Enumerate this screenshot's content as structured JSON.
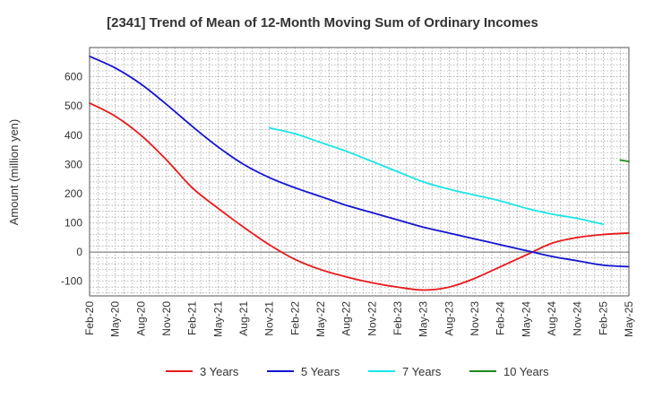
{
  "chart_data": {
    "type": "line",
    "title": "[2341]  Trend of Mean of 12-Month Moving Sum of Ordinary Incomes",
    "xlabel": "",
    "ylabel": "Amount (million yen)",
    "ylim": [
      -150,
      700
    ],
    "yticks": [
      -100,
      0,
      100,
      200,
      300,
      400,
      500,
      600
    ],
    "xlim": [
      0,
      63
    ],
    "xtick_positions": [
      0,
      3,
      6,
      9,
      12,
      15,
      18,
      21,
      24,
      27,
      30,
      33,
      36,
      39,
      42,
      45,
      48,
      51,
      54,
      57,
      60,
      63
    ],
    "categories": [
      "Feb-20",
      "May-20",
      "Aug-20",
      "Nov-20",
      "Feb-21",
      "May-21",
      "Aug-21",
      "Nov-21",
      "Feb-22",
      "May-22",
      "Aug-22",
      "Nov-22",
      "Feb-23",
      "May-23",
      "Aug-23",
      "Nov-23",
      "Feb-24",
      "May-24",
      "Aug-24",
      "Nov-24",
      "Feb-25",
      "May-25"
    ],
    "grid": true,
    "legend_position": "bottom",
    "series": [
      {
        "name": "3 Years",
        "color": "#e8191b",
        "points": [
          [
            0,
            510
          ],
          [
            3,
            465
          ],
          [
            6,
            400
          ],
          [
            9,
            315
          ],
          [
            12,
            220
          ],
          [
            15,
            150
          ],
          [
            18,
            85
          ],
          [
            21,
            25
          ],
          [
            24,
            -25
          ],
          [
            27,
            -60
          ],
          [
            30,
            -85
          ],
          [
            33,
            -105
          ],
          [
            36,
            -120
          ],
          [
            39,
            -130
          ],
          [
            42,
            -120
          ],
          [
            45,
            -90
          ],
          [
            48,
            -50
          ],
          [
            51,
            -10
          ],
          [
            54,
            30
          ],
          [
            57,
            50
          ],
          [
            60,
            60
          ],
          [
            63,
            65
          ]
        ]
      },
      {
        "name": "5 Years",
        "color": "#1414d2",
        "points": [
          [
            0,
            670
          ],
          [
            3,
            630
          ],
          [
            6,
            575
          ],
          [
            9,
            505
          ],
          [
            12,
            430
          ],
          [
            15,
            360
          ],
          [
            18,
            300
          ],
          [
            21,
            255
          ],
          [
            24,
            220
          ],
          [
            27,
            190
          ],
          [
            30,
            160
          ],
          [
            33,
            135
          ],
          [
            36,
            110
          ],
          [
            39,
            85
          ],
          [
            42,
            65
          ],
          [
            45,
            45
          ],
          [
            48,
            25
          ],
          [
            51,
            5
          ],
          [
            54,
            -15
          ],
          [
            57,
            -30
          ],
          [
            60,
            -45
          ],
          [
            63,
            -50
          ]
        ]
      },
      {
        "name": "7 Years",
        "color": "#19e6e6",
        "points": [
          [
            21,
            425
          ],
          [
            24,
            405
          ],
          [
            27,
            375
          ],
          [
            30,
            345
          ],
          [
            33,
            310
          ],
          [
            36,
            275
          ],
          [
            39,
            240
          ],
          [
            42,
            215
          ],
          [
            45,
            195
          ],
          [
            48,
            175
          ],
          [
            51,
            150
          ],
          [
            54,
            130
          ],
          [
            57,
            115
          ],
          [
            60,
            95
          ]
        ]
      },
      {
        "name": "10 Years",
        "color": "#1e8c1e",
        "points": [
          [
            62,
            315
          ],
          [
            63,
            310
          ]
        ]
      }
    ]
  }
}
